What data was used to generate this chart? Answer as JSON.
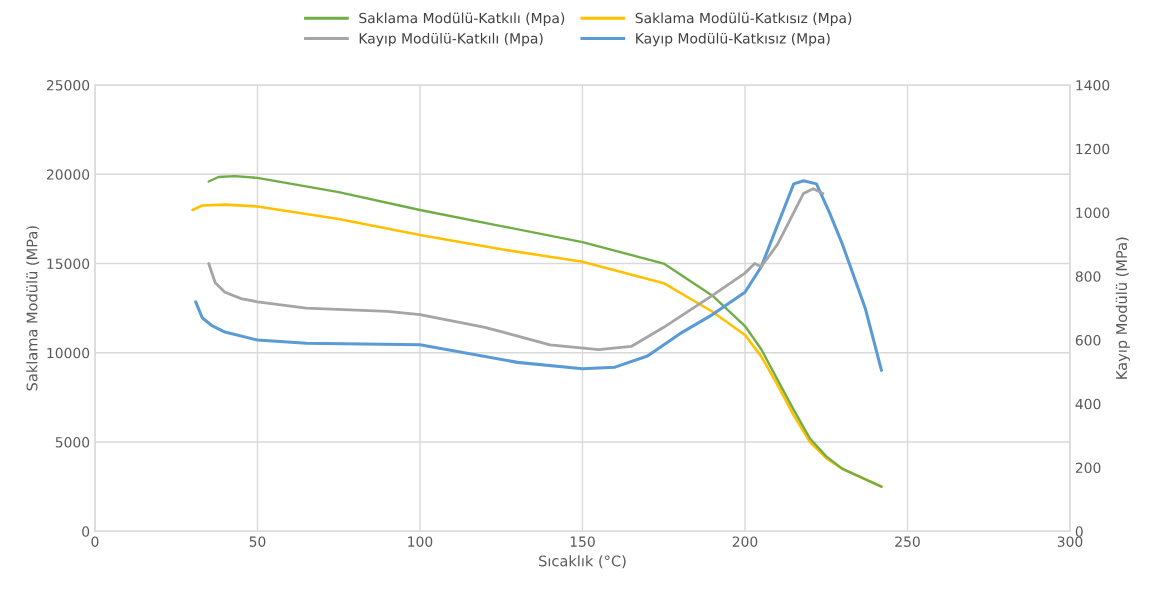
{
  "chart_data": {
    "type": "line",
    "xlabel": "Sıcaklık (°C)",
    "ylabel": "Saklama Modülü (MPa)",
    "y2label": "Kayıp Modülü (MPa)",
    "xlim": [
      0,
      300
    ],
    "xticks": [
      0,
      50,
      100,
      150,
      200,
      250,
      300
    ],
    "ylim": [
      0,
      25000
    ],
    "yticks": [
      0,
      5000,
      10000,
      15000,
      20000,
      25000
    ],
    "y2lim": [
      0,
      1400
    ],
    "y2ticks": [
      0,
      200,
      400,
      600,
      800,
      1000,
      1200,
      1400
    ],
    "grid": true,
    "legend": "top",
    "marker": "none",
    "line_style": "solid",
    "series": [
      {
        "name": "Saklama Modülü-Katkılı (Mpa)",
        "color": "#70ad47",
        "x": [
          35,
          38,
          43,
          50,
          75,
          100,
          125,
          150,
          175,
          190,
          200,
          205,
          210,
          215,
          220,
          225,
          230,
          236,
          242
        ],
        "values": [
          19600,
          19850,
          19900,
          19800,
          19000,
          18000,
          17100,
          16200,
          15000,
          13200,
          11500,
          10200,
          8500,
          6800,
          5200,
          4200,
          3500,
          3000,
          2500
        ]
      },
      {
        "name": "Saklama Modülü-Katkısız (Mpa)",
        "color": "#ffc000",
        "x": [
          30,
          33,
          40,
          50,
          75,
          100,
          125,
          150,
          175,
          190,
          200,
          205,
          210,
          215,
          220,
          225,
          230,
          236,
          242
        ],
        "values": [
          18000,
          18250,
          18300,
          18200,
          17500,
          16600,
          15800,
          15100,
          13900,
          12300,
          11000,
          9800,
          8200,
          6500,
          5000,
          4100,
          3500,
          3000,
          2500
        ]
      },
      {
        "name": "Kayıp Modülü-Katkılı (Mpa)",
        "color": "#a5a5a5",
        "axis": "y2",
        "x": [
          35,
          37,
          40,
          45,
          50,
          65,
          90,
          100,
          120,
          140,
          155,
          165,
          175,
          190,
          200,
          203,
          205,
          210,
          215,
          218,
          221,
          224
        ],
        "values": [
          840,
          780,
          750,
          730,
          720,
          700,
          690,
          680,
          640,
          585,
          570,
          580,
          640,
          740,
          810,
          840,
          830,
          900,
          1000,
          1060,
          1075,
          1060
        ]
      },
      {
        "name": "Kayıp Modülü-Katkısız (Mpa)",
        "color": "#5b9bd5",
        "axis": "y2",
        "x": [
          31,
          33,
          36,
          40,
          50,
          65,
          100,
          130,
          150,
          160,
          170,
          180,
          190,
          200,
          205,
          210,
          215,
          218,
          222,
          226,
          230,
          237,
          242
        ],
        "values": [
          720,
          670,
          645,
          625,
          600,
          590,
          585,
          530,
          510,
          515,
          550,
          620,
          680,
          750,
          830,
          960,
          1090,
          1100,
          1090,
          1000,
          900,
          700,
          505
        ]
      }
    ]
  }
}
